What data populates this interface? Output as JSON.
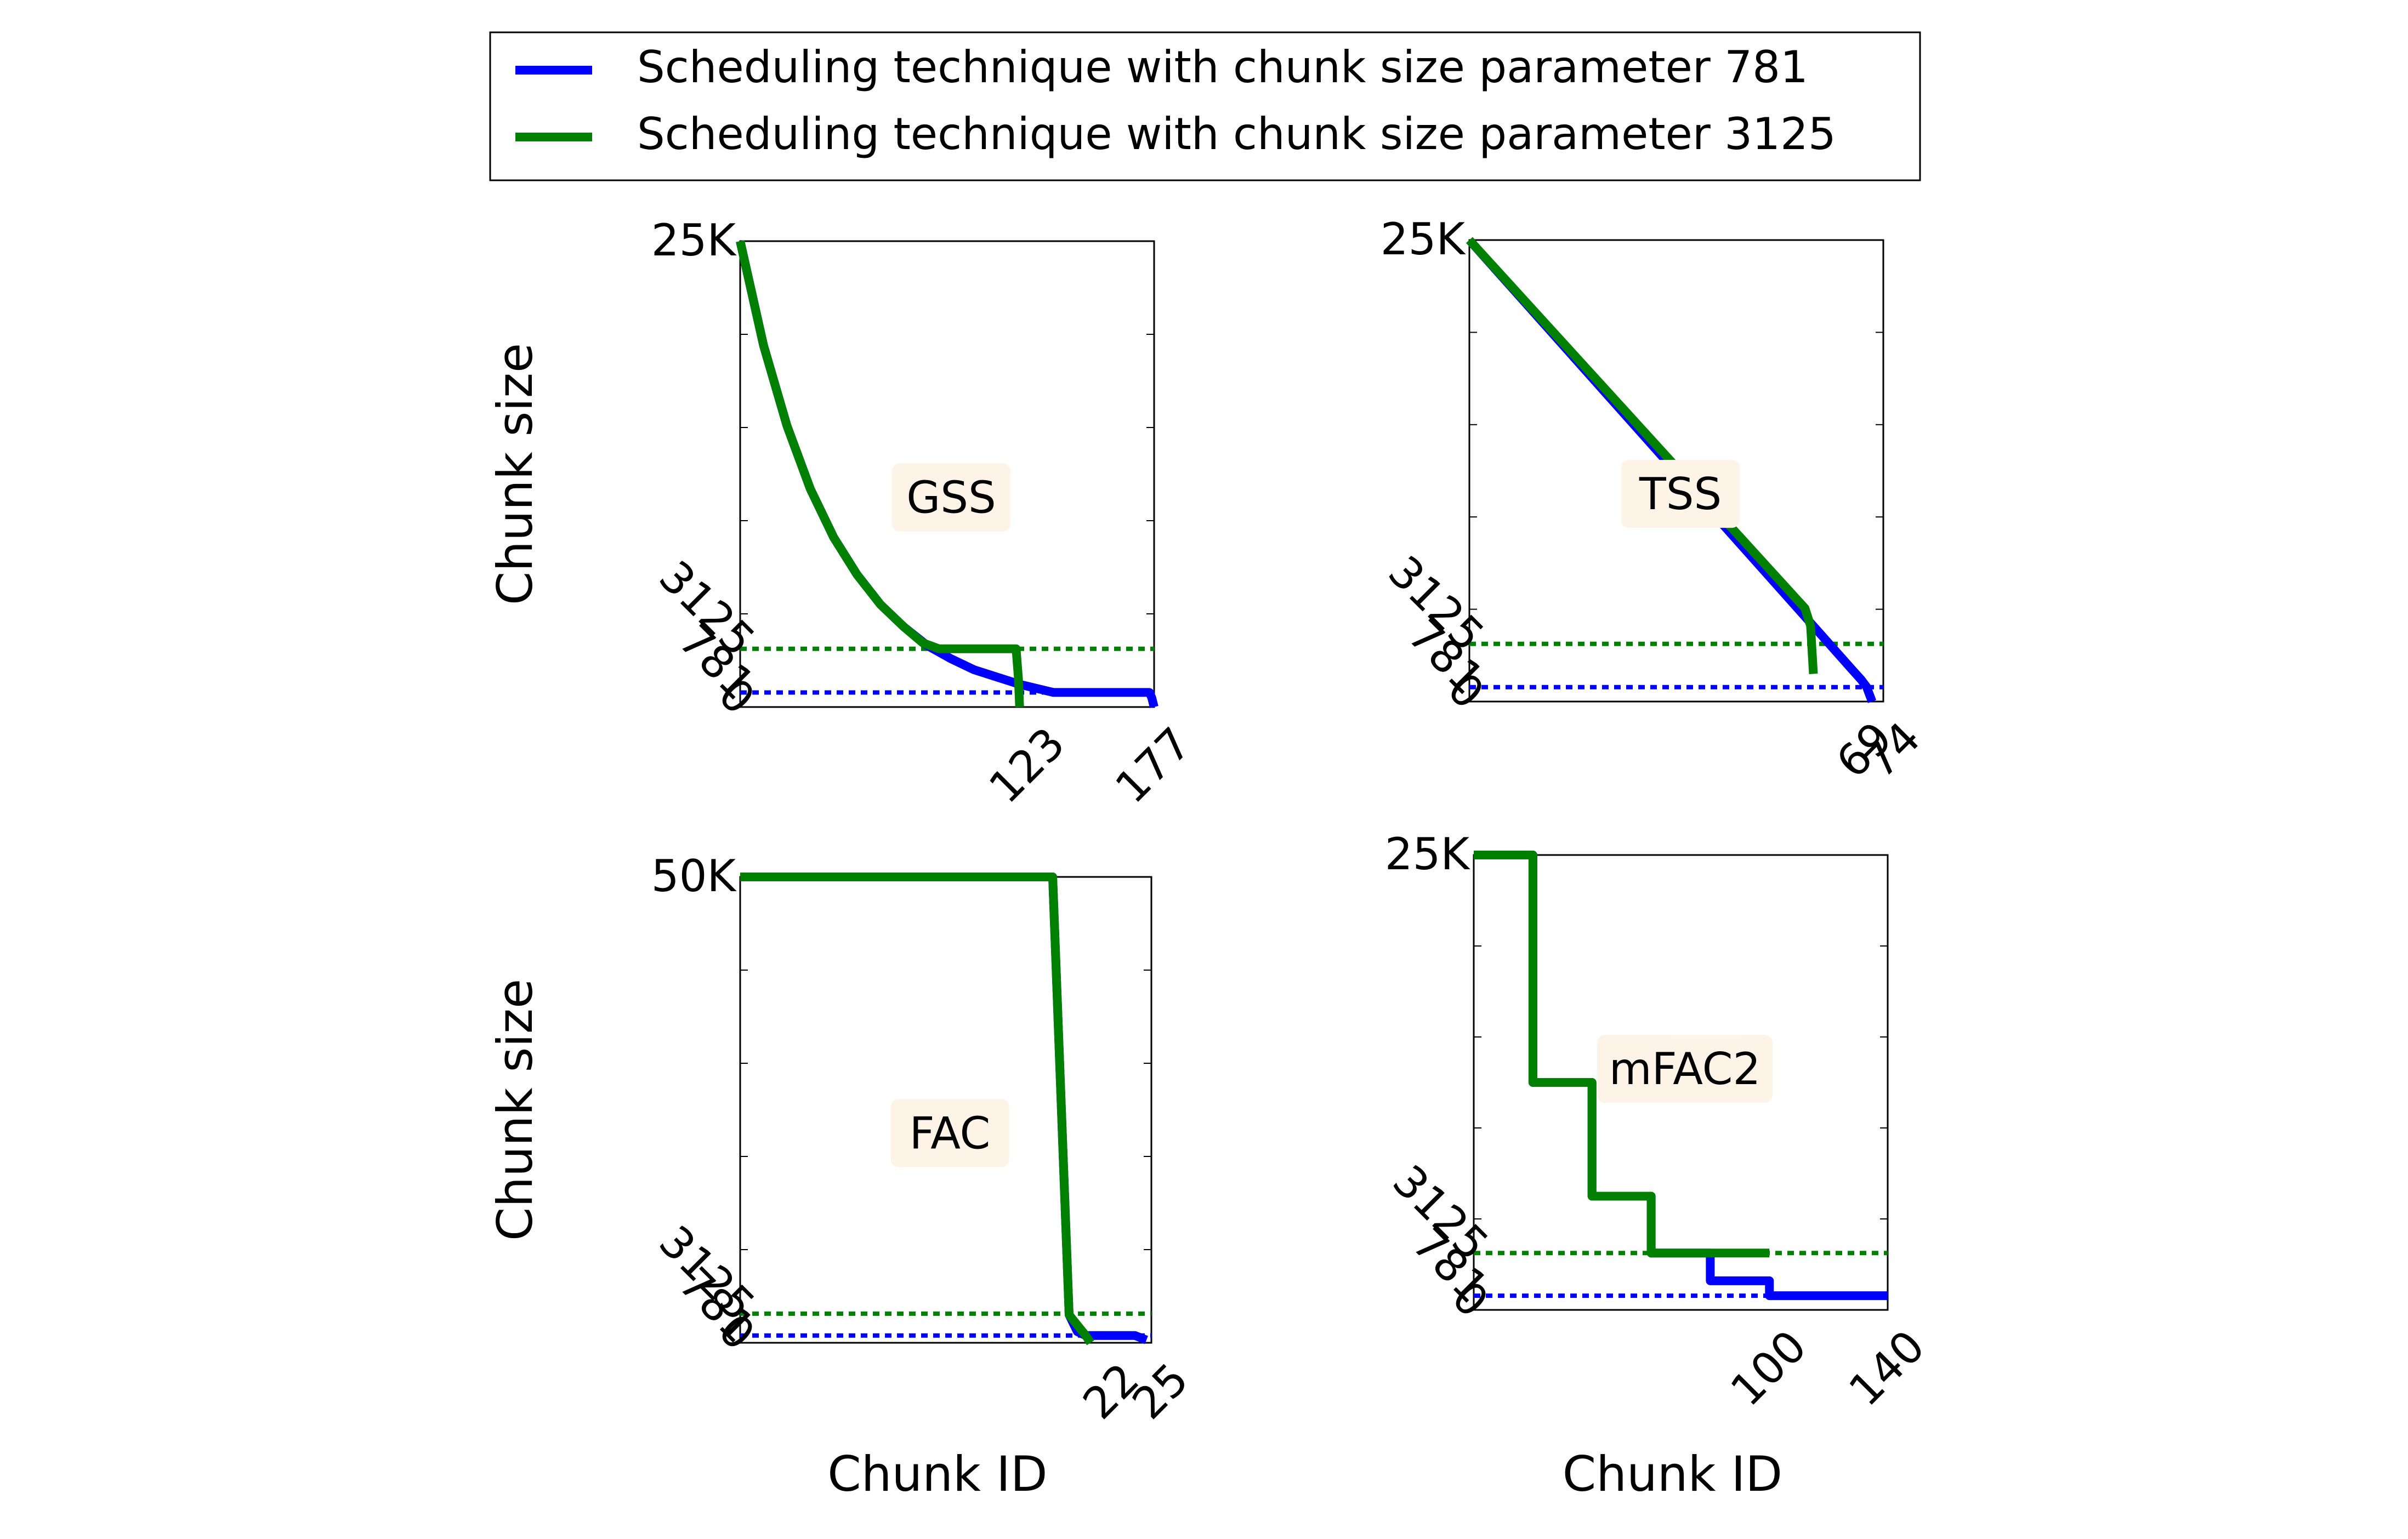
{
  "legend": {
    "placement": "top-center",
    "entries": [
      {
        "label": "Scheduling technique with chunk size parameter 781",
        "color": "#0000ff"
      },
      {
        "label": "Scheduling technique with chunk size parameter 3125",
        "color": "#008000"
      }
    ]
  },
  "colors": {
    "series_781": "#0000ff",
    "series_3125": "#008000",
    "annotation_bg": "#fdf4e7"
  },
  "chart_data": [
    {
      "type": "line",
      "annotation": "GSS",
      "ylabel": "Chunk size",
      "xlabel": "",
      "xlim": [
        0,
        177
      ],
      "ylim": [
        0,
        25000
      ],
      "xticks": [
        0,
        123,
        177
      ],
      "xtick_labels": [
        "0",
        "123",
        "177"
      ],
      "yticks": [
        0,
        781,
        3125,
        25000
      ],
      "ytick_labels": [
        "0",
        "781",
        "3125",
        "25K"
      ],
      "thresholds": [
        {
          "y": 3125,
          "color": "#008000"
        },
        {
          "y": 781,
          "color": "#0000ff"
        }
      ],
      "series": [
        {
          "name": "Scheduling technique with chunk size parameter 781",
          "color": "#0000ff",
          "x": [
            0,
            10,
            20,
            30,
            40,
            50,
            60,
            70,
            80,
            90,
            100,
            110,
            120,
            130,
            134,
            140,
            150,
            160,
            170,
            175,
            176,
            177
          ],
          "y": [
            25000,
            19400,
            15100,
            11700,
            9100,
            7100,
            5500,
            4300,
            3300,
            2600,
            2000,
            1600,
            1200,
            900,
            781,
            781,
            781,
            781,
            781,
            781,
            500,
            0
          ]
        },
        {
          "name": "Scheduling technique with chunk size parameter 3125",
          "color": "#008000",
          "x": [
            0,
            10,
            20,
            30,
            40,
            50,
            60,
            70,
            78,
            85,
            100,
            118,
            119,
            119.5
          ],
          "y": [
            25000,
            19400,
            15100,
            11700,
            9100,
            7100,
            5500,
            4300,
            3450,
            3125,
            3125,
            3125,
            1500,
            0
          ]
        }
      ]
    },
    {
      "type": "line",
      "annotation": "TSS",
      "ylabel": "",
      "xlabel": "",
      "xlim": [
        0,
        74
      ],
      "ylim": [
        0,
        25000
      ],
      "xticks": [
        0,
        69,
        74
      ],
      "xtick_labels": [
        "0",
        "69",
        "74"
      ],
      "yticks": [
        0,
        781,
        3125,
        25000
      ],
      "ytick_labels": [
        "0",
        "781",
        "3125",
        "25K"
      ],
      "thresholds": [
        {
          "y": 3125,
          "color": "#008000"
        },
        {
          "y": 781,
          "color": "#0000ff"
        }
      ],
      "series": [
        {
          "name": "Scheduling technique with chunk size parameter 781",
          "color": "#0000ff",
          "x": [
            0,
            20,
            40,
            60,
            68.5,
            70,
            71,
            72
          ],
          "y": [
            25000,
            18200,
            11400,
            4600,
            1700,
            1200,
            800,
            0
          ]
        },
        {
          "name": "Scheduling technique with chunk size parameter 3125",
          "color": "#008000",
          "x": [
            0,
            20,
            40,
            60,
            61,
            61.5
          ],
          "y": [
            25000,
            18350,
            11700,
            5050,
            4100,
            1500
          ]
        }
      ]
    },
    {
      "type": "line",
      "annotation": "FAC",
      "ylabel": "Chunk size",
      "xlabel": "Chunk ID",
      "xlim": [
        0,
        25
      ],
      "ylim": [
        0,
        50000
      ],
      "xticks": [
        0,
        22,
        25
      ],
      "xtick_labels": [
        "0",
        "22",
        "25"
      ],
      "yticks": [
        0,
        781,
        3125,
        50000
      ],
      "ytick_labels": [
        "0",
        "781",
        "3125",
        "50K"
      ],
      "thresholds": [
        {
          "y": 3125,
          "color": "#008000"
        },
        {
          "y": 781,
          "color": "#0000ff"
        }
      ],
      "series": [
        {
          "name": "Scheduling technique with chunk size parameter 781",
          "color": "#0000ff",
          "x": [
            0,
            19,
            20,
            20.5,
            21,
            22,
            23,
            24,
            24.7
          ],
          "y": [
            50000,
            50000,
            3000,
            1200,
            781,
            781,
            781,
            781,
            300
          ]
        },
        {
          "name": "Scheduling technique with chunk size parameter 3125",
          "color": "#008000",
          "x": [
            0,
            19,
            20,
            21,
            21.3
          ],
          "y": [
            50000,
            50000,
            3000,
            800,
            0
          ]
        }
      ]
    },
    {
      "type": "line",
      "annotation": "mFAC2",
      "ylabel": "",
      "xlabel": "Chunk ID",
      "xlim": [
        0,
        140
      ],
      "ylim": [
        0,
        25000
      ],
      "xticks": [
        0,
        100,
        140
      ],
      "xtick_labels": [
        "0",
        "100",
        "140"
      ],
      "yticks": [
        0,
        781,
        3125,
        25000
      ],
      "ytick_labels": [
        "0",
        "781",
        "3125",
        "25K"
      ],
      "thresholds": [
        {
          "y": 3125,
          "color": "#008000"
        },
        {
          "y": 781,
          "color": "#0000ff"
        }
      ],
      "series": [
        {
          "name": "Scheduling technique with chunk size parameter 781",
          "color": "#0000ff",
          "x": [
            0,
            20,
            20,
            40,
            40,
            60,
            60,
            80,
            80,
            100,
            100,
            140
          ],
          "y": [
            25000,
            25000,
            12500,
            12500,
            6250,
            6250,
            3125,
            3125,
            1600,
            1600,
            781,
            781
          ]
        },
        {
          "name": "Scheduling technique with chunk size parameter 3125",
          "color": "#008000",
          "x": [
            0,
            20,
            20,
            40,
            40,
            60,
            60,
            100
          ],
          "y": [
            25000,
            25000,
            12500,
            12500,
            6250,
            6250,
            3125,
            3125
          ]
        }
      ]
    }
  ]
}
